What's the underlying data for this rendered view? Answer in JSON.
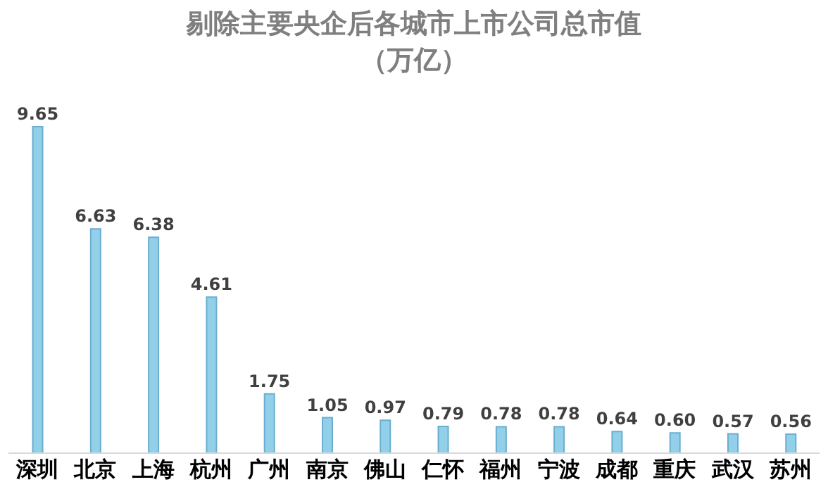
{
  "chart_data": {
    "type": "bar",
    "title": "剔除主要央企后各城市上市公司总市值",
    "subtitle": "（万亿）",
    "categories": [
      "深圳",
      "北京",
      "上海",
      "杭州",
      "广州",
      "南京",
      "佛山",
      "仁怀",
      "福州",
      "宁波",
      "成都",
      "重庆",
      "武汉",
      "苏州"
    ],
    "values": [
      9.65,
      6.63,
      6.38,
      4.61,
      1.75,
      1.05,
      0.97,
      0.79,
      0.78,
      0.78,
      0.64,
      0.6,
      0.57,
      0.56
    ],
    "value_labels": [
      "9.65",
      "6.63",
      "6.38",
      "4.61",
      "1.75",
      "1.05",
      "0.97",
      "0.79",
      "0.78",
      "0.78",
      "0.64",
      "0.60",
      "0.57",
      "0.56"
    ],
    "color": "#92d0ea"
  }
}
